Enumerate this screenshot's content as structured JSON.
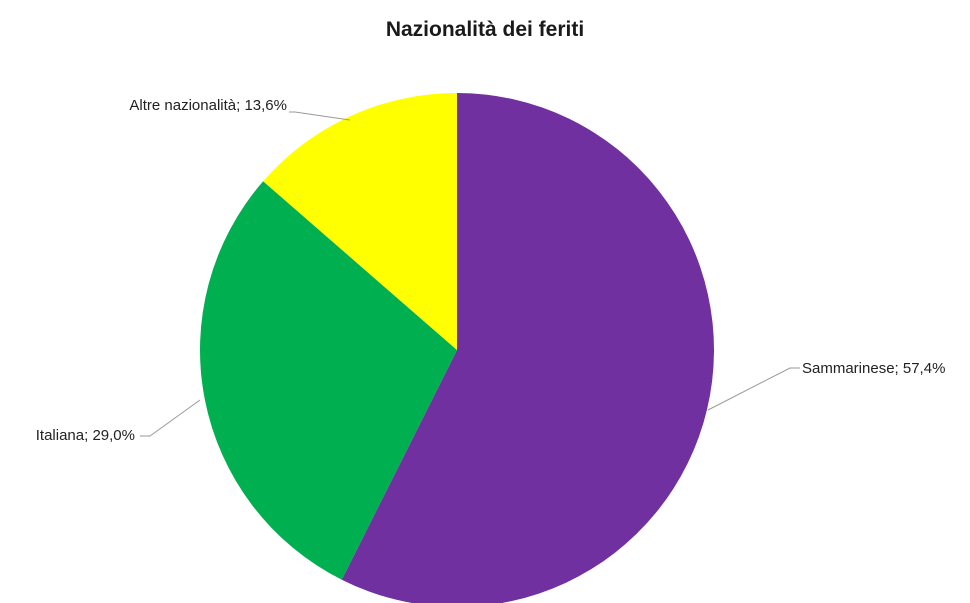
{
  "chart_data": {
    "type": "pie",
    "title": "Nazionalità dei feriti",
    "slices": [
      {
        "name": "Sammarinese",
        "value": 57.4,
        "value_label": "57,4%",
        "color": "#7030A0"
      },
      {
        "name": "Italiana",
        "value": 29.0,
        "value_label": "29,0%",
        "color": "#00B050"
      },
      {
        "name": "Altre nazionalità",
        "value": 13.6,
        "value_label": "13,6%",
        "color": "#FFFF00"
      }
    ],
    "start_angle_deg": 0,
    "direction": "clockwise",
    "legend": "none",
    "data_labels": "outside-with-leader-lines"
  }
}
